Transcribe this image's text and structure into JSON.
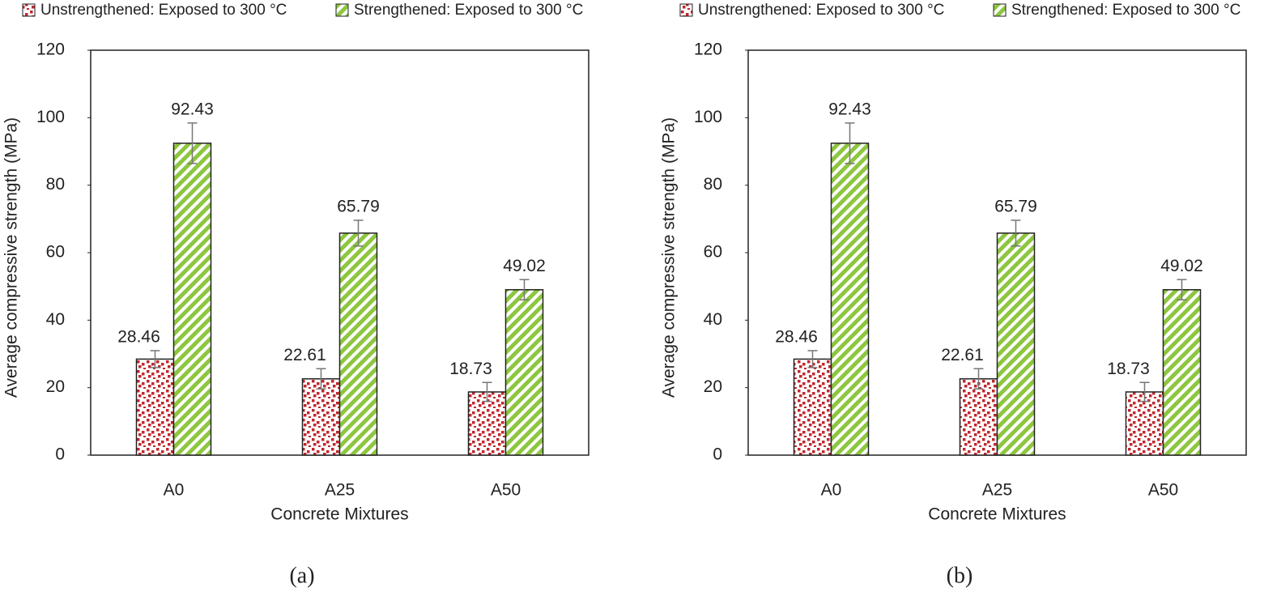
{
  "chart_data": [
    {
      "type": "bar",
      "caption": "(a)",
      "ylabel": "Average compressive strength (MPa)",
      "xlabel": "Concrete Mixtures",
      "categories": [
        "A0",
        "A25",
        "A50"
      ],
      "series": [
        {
          "name": "Unstrengthened: Exposed to 300 °C",
          "color": "#c0272d",
          "pattern": "dots",
          "values": [
            28.46,
            22.61,
            18.73
          ],
          "errors": [
            2.5,
            3,
            2.8
          ]
        },
        {
          "name": "Strengthened: Exposed to 300 °C",
          "color": "#8dc63f",
          "pattern": "stripes",
          "values": [
            92.43,
            65.79,
            49.02
          ],
          "errors": [
            6,
            3.8,
            3
          ]
        }
      ],
      "ylim": [
        0,
        120
      ],
      "yticks": [
        0,
        20,
        40,
        60,
        80,
        100,
        120
      ]
    },
    {
      "type": "bar",
      "caption": "(b)",
      "ylabel": "Average compressive strength (MPa)",
      "xlabel": "Concrete Mixtures",
      "categories": [
        "A0",
        "A25",
        "A50"
      ],
      "series": [
        {
          "name": "Unstrengthened: Exposed to 300 °C",
          "color": "#c0272d",
          "pattern": "dots",
          "values": [
            28.46,
            22.61,
            18.73
          ],
          "errors": [
            2.5,
            3,
            2.8
          ]
        },
        {
          "name": "Strengthened: Exposed to 300 °C",
          "color": "#8dc63f",
          "pattern": "stripes",
          "values": [
            92.43,
            65.79,
            49.02
          ],
          "errors": [
            6,
            3.8,
            3
          ]
        }
      ],
      "ylim": [
        0,
        120
      ],
      "yticks": [
        0,
        20,
        40,
        60,
        80,
        100,
        120
      ]
    }
  ]
}
